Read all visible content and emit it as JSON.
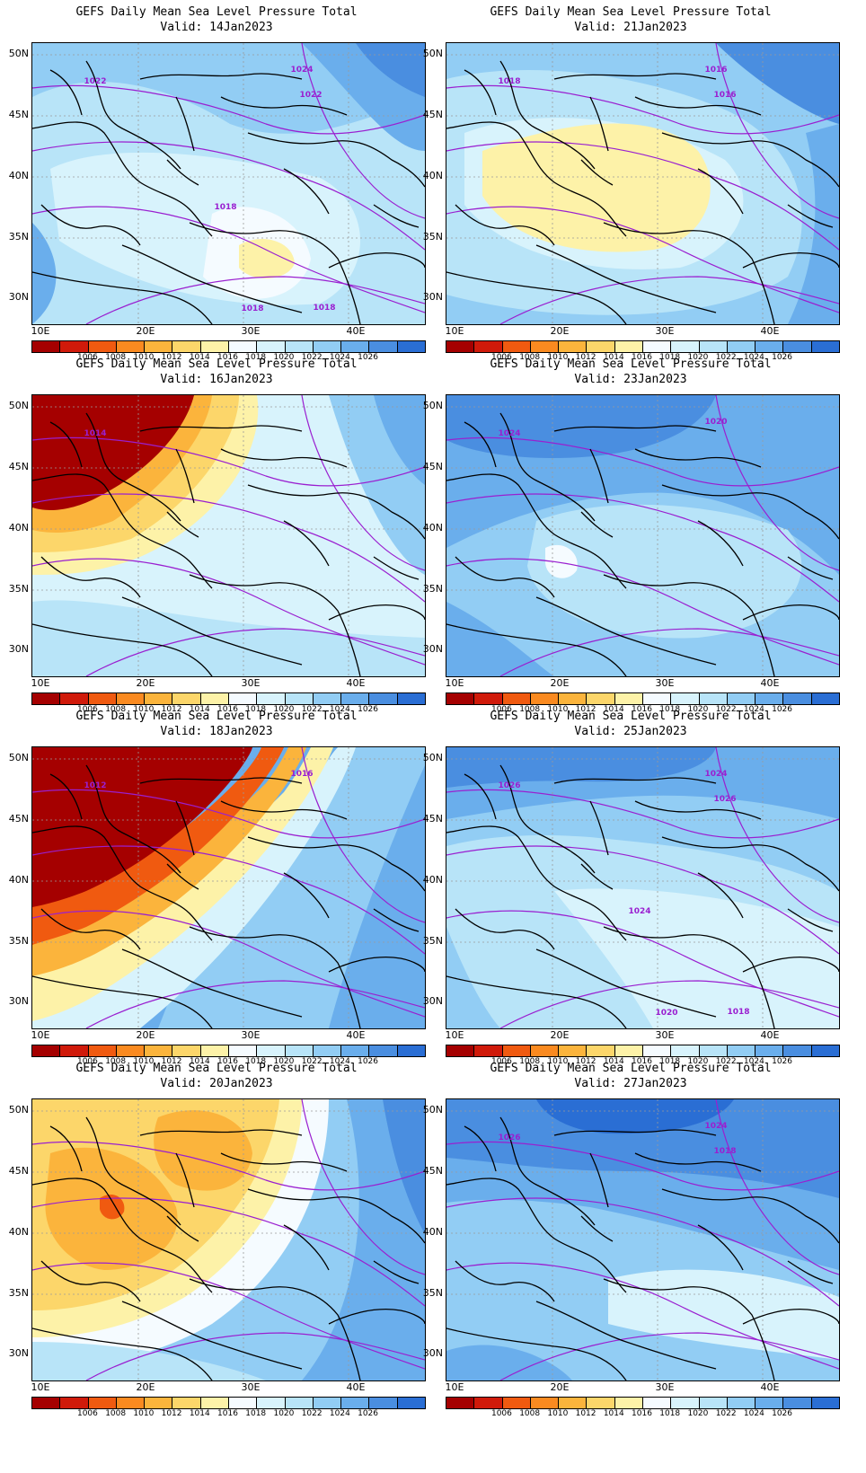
{
  "panels": [
    {
      "title": "GEFS Daily Mean Sea Level Pressure Total",
      "valid": "Valid:  14Jan2023",
      "scheme": "hi_mixed",
      "labels": [
        "1022",
        "1024",
        "1022",
        "1018",
        "1018",
        "1018"
      ]
    },
    {
      "title": "GEFS Daily Mean Sea Level Pressure Total",
      "valid": "Valid:  21Jan2023",
      "scheme": "center_low",
      "labels": [
        "1018",
        "1016",
        "1016"
      ]
    },
    {
      "title": "GEFS Daily Mean Sea Level Pressure Total",
      "valid": "Valid:  16Jan2023",
      "scheme": "nw_low",
      "labels": [
        "1014"
      ]
    },
    {
      "title": "GEFS Daily Mean Sea Level Pressure Total",
      "valid": "Valid:  23Jan2023",
      "scheme": "high",
      "labels": [
        "1024",
        "1020"
      ]
    },
    {
      "title": "GEFS Daily Mean Sea Level Pressure Total",
      "valid": "Valid:  18Jan2023",
      "scheme": "deep_low",
      "labels": [
        "1012",
        "1016"
      ]
    },
    {
      "title": "GEFS Daily Mean Sea Level Pressure Total",
      "valid": "Valid:  25Jan2023",
      "scheme": "high_ne",
      "labels": [
        "1026",
        "1024",
        "1026",
        "1024",
        "1020",
        "1018"
      ]
    },
    {
      "title": "GEFS Daily Mean Sea Level Pressure Total",
      "valid": "Valid:  20Jan2023",
      "scheme": "warm_low",
      "labels": []
    },
    {
      "title": "GEFS Daily Mean Sea Level Pressure Total",
      "valid": "Valid:  27Jan2023",
      "scheme": "high_n",
      "labels": [
        "1026",
        "1024",
        "1018"
      ]
    }
  ],
  "axes": {
    "lat_labels": [
      "50N",
      "45N",
      "40N",
      "35N",
      "30N"
    ],
    "lon_labels": [
      "10E",
      "20E",
      "30E",
      "40E"
    ]
  },
  "colorbar": {
    "colors": [
      "#a50000",
      "#d01a0a",
      "#f05a10",
      "#fa8a20",
      "#fbb43c",
      "#fcd66a",
      "#fdf2a8",
      "#f5fbff",
      "#d8f3fc",
      "#b8e4f8",
      "#92cdf4",
      "#6aaeec",
      "#4a8ee0",
      "#2a6ed4"
    ],
    "labels": [
      "1006",
      "1008",
      "1010",
      "1012",
      "1014",
      "1016",
      "1018",
      "1020",
      "1022",
      "1024",
      "1026"
    ]
  }
}
